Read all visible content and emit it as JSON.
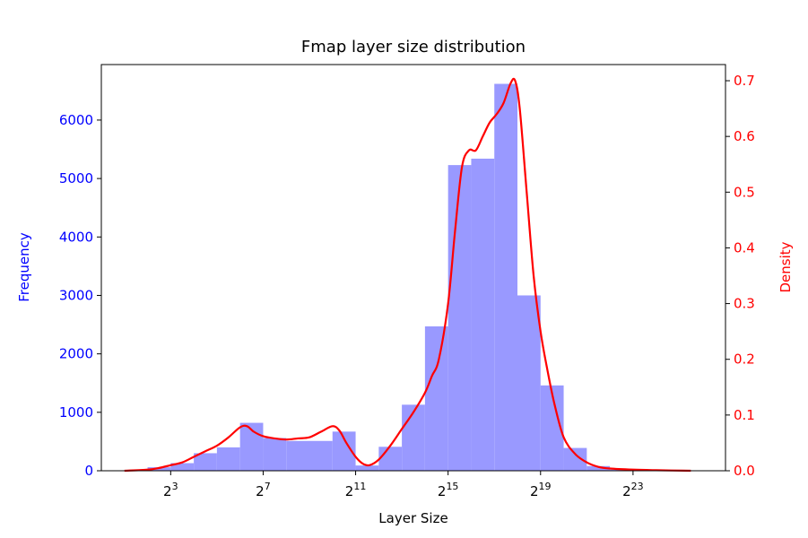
{
  "chart_data": {
    "type": "bar",
    "title": "Fmap layer size distribution",
    "xlabel": "Layer Size",
    "ylabel_left": "Frequency",
    "ylabel_right": "Density",
    "x_scale": "log2",
    "xlim_log2": [
      0,
      27
    ],
    "ylim_left": [
      0,
      6950
    ],
    "ylim_right": [
      0,
      0.729
    ],
    "left_ticks": [
      0,
      1000,
      2000,
      3000,
      4000,
      5000,
      6000
    ],
    "left_tick_labels": [
      "0",
      "1000",
      "2000",
      "3000",
      "4000",
      "5000",
      "6000"
    ],
    "right_ticks": [
      0,
      0.1,
      0.2,
      0.3,
      0.4,
      0.5,
      0.6,
      0.7
    ],
    "right_tick_labels": [
      "0.0",
      "0.1",
      "0.2",
      "0.3",
      "0.4",
      "0.5",
      "0.6",
      "0.7"
    ],
    "x_ticks_log2": [
      3,
      7,
      11,
      15,
      19,
      23
    ],
    "x_tick_labels": [
      {
        "base": "2",
        "exp": "3"
      },
      {
        "base": "2",
        "exp": "7"
      },
      {
        "base": "2",
        "exp": "11"
      },
      {
        "base": "2",
        "exp": "15"
      },
      {
        "base": "2",
        "exp": "19"
      },
      {
        "base": "2",
        "exp": "23"
      }
    ],
    "colors": {
      "bars": "#9999ff",
      "density": "#ff0000",
      "left_axis": "#0000ff",
      "right_axis": "#ff0000"
    },
    "histogram": [
      {
        "x0_log2": 1,
        "x1_log2": 2,
        "value": 10
      },
      {
        "x0_log2": 2,
        "x1_log2": 3,
        "value": 60
      },
      {
        "x0_log2": 3,
        "x1_log2": 4,
        "value": 130
      },
      {
        "x0_log2": 4,
        "x1_log2": 5,
        "value": 300
      },
      {
        "x0_log2": 5,
        "x1_log2": 6,
        "value": 400
      },
      {
        "x0_log2": 6,
        "x1_log2": 7,
        "value": 820
      },
      {
        "x0_log2": 7,
        "x1_log2": 8,
        "value": 560
      },
      {
        "x0_log2": 8,
        "x1_log2": 9,
        "value": 510
      },
      {
        "x0_log2": 9,
        "x1_log2": 10,
        "value": 510
      },
      {
        "x0_log2": 10,
        "x1_log2": 11,
        "value": 670
      },
      {
        "x0_log2": 11,
        "x1_log2": 12,
        "value": 90
      },
      {
        "x0_log2": 12,
        "x1_log2": 13,
        "value": 410
      },
      {
        "x0_log2": 13,
        "x1_log2": 14,
        "value": 1130
      },
      {
        "x0_log2": 14,
        "x1_log2": 15,
        "value": 2470
      },
      {
        "x0_log2": 15,
        "x1_log2": 16,
        "value": 5230
      },
      {
        "x0_log2": 16,
        "x1_log2": 17,
        "value": 5340
      },
      {
        "x0_log2": 17,
        "x1_log2": 18,
        "value": 6620
      },
      {
        "x0_log2": 18,
        "x1_log2": 19,
        "value": 3000
      },
      {
        "x0_log2": 19,
        "x1_log2": 20,
        "value": 1460
      },
      {
        "x0_log2": 20,
        "x1_log2": 21,
        "value": 390
      },
      {
        "x0_log2": 21,
        "x1_log2": 22,
        "value": 80
      },
      {
        "x0_log2": 22,
        "x1_log2": 23,
        "value": 20
      }
    ],
    "density": {
      "x_log2": [
        1,
        2,
        2.5,
        3,
        3.5,
        4,
        4.5,
        5,
        5.5,
        6,
        6.3,
        6.6,
        7,
        7.5,
        8,
        8.5,
        9,
        9.5,
        10,
        10.3,
        10.6,
        11,
        11.3,
        11.6,
        12,
        12.5,
        13,
        13.5,
        14,
        14.3,
        14.6,
        15,
        15.3,
        15.6,
        15.9,
        16.2,
        16.5,
        16.8,
        17.1,
        17.4,
        17.7,
        17.9,
        18.1,
        18.4,
        18.7,
        19,
        19.3,
        19.6,
        20,
        20.5,
        21,
        21.5,
        22,
        23,
        24,
        25.5
      ],
      "density": [
        0.0,
        0.002,
        0.005,
        0.01,
        0.015,
        0.025,
        0.035,
        0.045,
        0.06,
        0.078,
        0.08,
        0.07,
        0.062,
        0.058,
        0.056,
        0.058,
        0.06,
        0.07,
        0.08,
        0.072,
        0.05,
        0.025,
        0.013,
        0.01,
        0.02,
        0.045,
        0.075,
        0.105,
        0.14,
        0.17,
        0.2,
        0.3,
        0.43,
        0.545,
        0.575,
        0.575,
        0.6,
        0.625,
        0.64,
        0.66,
        0.695,
        0.7,
        0.65,
        0.5,
        0.35,
        0.25,
        0.18,
        0.12,
        0.06,
        0.03,
        0.015,
        0.007,
        0.004,
        0.002,
        0.001,
        0.0
      ]
    }
  }
}
